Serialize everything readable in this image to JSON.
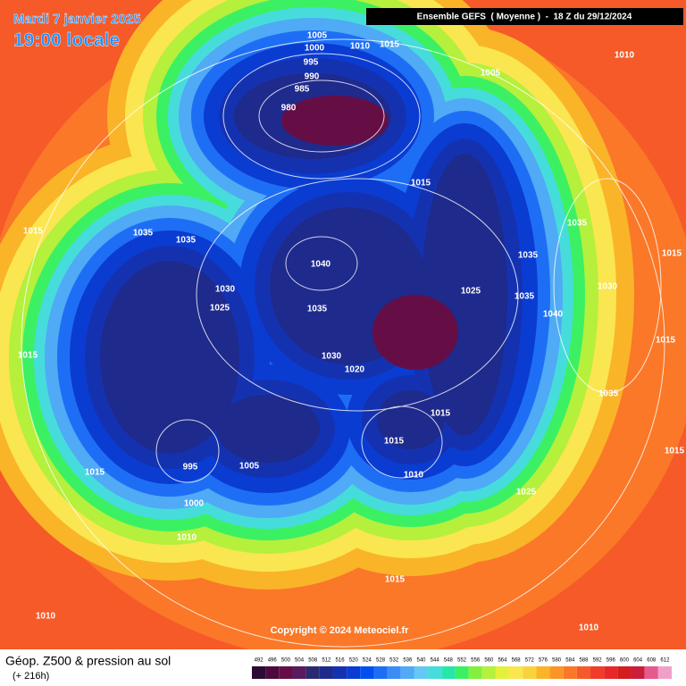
{
  "header": {
    "date": "Mardi 7 janvier 2025",
    "time": "19:00 locale",
    "run": "Ensemble GEFS  ( Moyenne )  -  18 Z du 29/12/2024"
  },
  "map": {
    "isobar_labels": [
      1005,
      1010,
      1015,
      1000,
      995,
      990,
      985,
      980,
      1005,
      1010,
      1015,
      1015,
      1035,
      1035,
      1040,
      1035,
      1035,
      1030,
      1025,
      1035,
      1030,
      1025,
      1035,
      1040,
      1015,
      1015,
      1030,
      1020,
      1015,
      1035,
      1015,
      1015,
      995,
      1005,
      1010,
      1015,
      1015,
      1025,
      1000,
      1010,
      1015,
      1010,
      1010
    ],
    "copyright": "Copyright © 2024 Meteociel.fr"
  },
  "footer": {
    "title": "Géop. Z500 & pression au sol",
    "lead": "(+ 216h)"
  },
  "scale": {
    "labels": [
      492,
      496,
      500,
      504,
      508,
      512,
      516,
      520,
      524,
      528,
      532,
      536,
      540,
      544,
      548,
      552,
      556,
      560,
      564,
      568,
      572,
      576,
      580,
      584,
      588,
      592,
      596,
      600,
      604,
      608,
      612
    ],
    "colors": [
      "#2d0a33",
      "#4b0b3e",
      "#650e46",
      "#5a1a5e",
      "#2a2a70",
      "#1e2a8c",
      "#1432b0",
      "#0a3cd2",
      "#0050f0",
      "#1e6ef5",
      "#3c8cf5",
      "#50aaf5",
      "#64c8f5",
      "#46dcdc",
      "#28e6aa",
      "#3cf064",
      "#82f03c",
      "#b4f03c",
      "#e6f03c",
      "#fae650",
      "#fad23c",
      "#fab428",
      "#fa9628",
      "#fa7828",
      "#f55a28",
      "#f03c28",
      "#e62828",
      "#d21e1e",
      "#c81e3c",
      "#e65a8c",
      "#f0a0c8"
    ]
  }
}
